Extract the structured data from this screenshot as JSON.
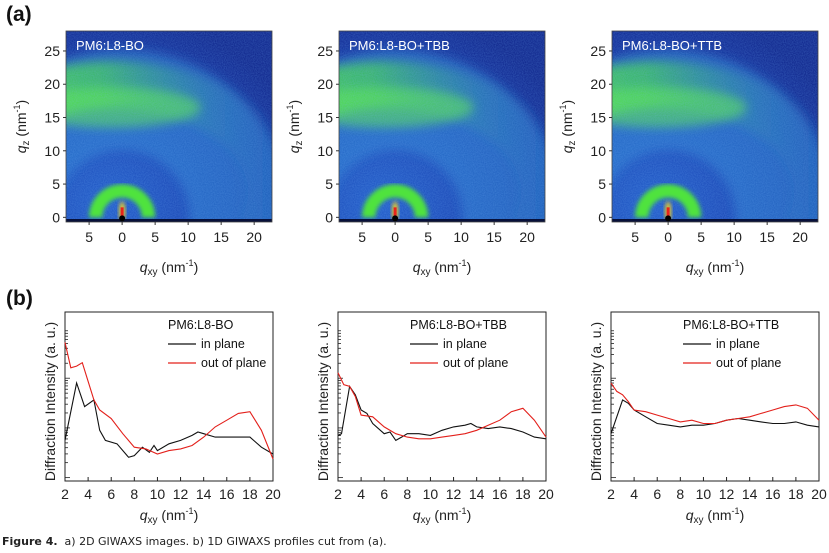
{
  "panel_a": {
    "label": "(a)",
    "images": [
      {
        "sample": "PM6:L8-BO"
      },
      {
        "sample": "PM6:L8-BO+TBB"
      },
      {
        "sample": "PM6:L8-BO+TTB"
      }
    ],
    "x_ticks": [
      "5",
      "0",
      "5",
      "10",
      "15",
      "20"
    ],
    "x_tick_values": [
      -5,
      0,
      5,
      10,
      15,
      20
    ],
    "y_ticks": [
      "0",
      "5",
      "10",
      "15",
      "20",
      "25"
    ],
    "y_tick_values": [
      0,
      5,
      10,
      15,
      20,
      25
    ],
    "xlim": [
      -8.5,
      22.7
    ],
    "ylim": [
      -0.7,
      28
    ],
    "xlabel": {
      "var": "q",
      "sub": "xy",
      "unit": " (nm",
      "sup": "-1",
      "close": ")"
    },
    "ylabel": {
      "var": "q",
      "sub": "z",
      "unit": " (nm",
      "sup": "-1",
      "close": ")"
    },
    "colors": {
      "background": "#0c2a9a",
      "band": "#3fe03a",
      "center": "#e8231a"
    }
  },
  "chart_data": [
    {
      "type": "line",
      "title": "PM6:L8-BO",
      "xlabel": "qxy (nm-1)",
      "ylabel": "Diffraction Intensity (a. u.)",
      "xlim": [
        2,
        20
      ],
      "yscale": "log (relative, unlabeled)",
      "ylim": [
        0,
        1
      ],
      "legend": "top-right",
      "series": [
        {
          "name": "in plane",
          "color": "#111111",
          "x": [
            2,
            3,
            3.7,
            4.5,
            5,
            5.5,
            6.5,
            7.5,
            8,
            8.7,
            9.3,
            9.7,
            10,
            11,
            12,
            13,
            13.5,
            14,
            15,
            16,
            17,
            18,
            19,
            20
          ],
          "y": [
            0.24,
            0.58,
            0.44,
            0.48,
            0.3,
            0.24,
            0.22,
            0.14,
            0.15,
            0.2,
            0.17,
            0.21,
            0.18,
            0.22,
            0.24,
            0.27,
            0.29,
            0.28,
            0.26,
            0.26,
            0.26,
            0.26,
            0.2,
            0.16
          ]
        },
        {
          "name": "out of plane",
          "color": "#e3201b",
          "x": [
            2,
            2.5,
            3,
            3.5,
            4,
            4.5,
            5,
            6,
            7,
            8,
            9,
            10,
            11,
            12,
            13,
            14,
            15,
            16,
            17,
            18,
            19,
            20
          ],
          "y": [
            0.82,
            0.67,
            0.68,
            0.7,
            0.59,
            0.48,
            0.42,
            0.37,
            0.28,
            0.2,
            0.19,
            0.16,
            0.18,
            0.19,
            0.21,
            0.26,
            0.32,
            0.36,
            0.4,
            0.41,
            0.3,
            0.13
          ]
        }
      ]
    },
    {
      "type": "line",
      "title": "PM6:L8-BO+TBB",
      "xlabel": "qxy (nm-1)",
      "ylabel": "Diffraction Intensity (a. u.)",
      "xlim": [
        2,
        20
      ],
      "yscale": "log (relative, unlabeled)",
      "ylim": [
        0,
        1
      ],
      "legend": "top-right",
      "series": [
        {
          "name": "in plane",
          "color": "#111111",
          "x": [
            2,
            2.3,
            3,
            3.5,
            4,
            4.5,
            5,
            6,
            6.5,
            7,
            7.5,
            8,
            9,
            10,
            11,
            12,
            13,
            13.5,
            14,
            15,
            16,
            17,
            18,
            19,
            20
          ],
          "y": [
            0.27,
            0.28,
            0.56,
            0.51,
            0.42,
            0.4,
            0.34,
            0.28,
            0.29,
            0.24,
            0.26,
            0.28,
            0.28,
            0.27,
            0.3,
            0.32,
            0.33,
            0.34,
            0.32,
            0.31,
            0.32,
            0.31,
            0.29,
            0.26,
            0.25
          ]
        },
        {
          "name": "out of plane",
          "color": "#e3201b",
          "x": [
            2,
            2.5,
            3,
            3.5,
            4,
            5,
            6,
            7,
            8,
            9,
            10,
            11,
            12,
            13,
            14,
            15,
            16,
            17,
            18,
            19,
            20
          ],
          "y": [
            0.64,
            0.57,
            0.56,
            0.5,
            0.39,
            0.38,
            0.32,
            0.28,
            0.26,
            0.25,
            0.25,
            0.26,
            0.27,
            0.28,
            0.3,
            0.33,
            0.36,
            0.41,
            0.43,
            0.36,
            0.26
          ]
        }
      ]
    },
    {
      "type": "line",
      "title": "PM6:L8-BO+TTB",
      "xlabel": "qxy (nm-1)",
      "ylabel": "Diffraction Intensity (a. u.)",
      "xlim": [
        2,
        20
      ],
      "yscale": "log (relative, unlabeled)",
      "ylim": [
        0,
        1
      ],
      "legend": "top-right",
      "series": [
        {
          "name": "in plane",
          "color": "#111111",
          "x": [
            2,
            3,
            3.5,
            4,
            5,
            6,
            7,
            8,
            9,
            10,
            11,
            12,
            13,
            14,
            15,
            16,
            17,
            18,
            19,
            20
          ],
          "y": [
            0.28,
            0.48,
            0.46,
            0.42,
            0.38,
            0.34,
            0.33,
            0.32,
            0.33,
            0.33,
            0.34,
            0.36,
            0.37,
            0.36,
            0.35,
            0.34,
            0.34,
            0.35,
            0.33,
            0.32
          ]
        },
        {
          "name": "out of plane",
          "color": "#e3201b",
          "x": [
            2,
            2.5,
            3,
            3.5,
            4,
            5,
            6,
            7,
            8,
            9,
            10,
            11,
            12,
            13,
            14,
            15,
            16,
            17,
            18,
            19,
            20
          ],
          "y": [
            0.58,
            0.53,
            0.51,
            0.47,
            0.42,
            0.41,
            0.39,
            0.37,
            0.35,
            0.36,
            0.34,
            0.34,
            0.36,
            0.37,
            0.38,
            0.4,
            0.42,
            0.44,
            0.45,
            0.43,
            0.36
          ]
        }
      ]
    }
  ],
  "panel_b": {
    "label": "(b)",
    "x_ticks": [
      "2",
      "4",
      "6",
      "8",
      "10",
      "12",
      "14",
      "16",
      "18",
      "20"
    ],
    "ylabel": "Diffraction Intensity (a. u.)",
    "xlabel": {
      "var": "q",
      "sub": "xy",
      "unit": " (nm",
      "sup": "-1",
      "close": ")"
    }
  },
  "caption": {
    "bold": "Figure 4.",
    "text": "  a) 2D GIWAXS images. b) 1D GIWAXS profiles cut from (a)."
  }
}
